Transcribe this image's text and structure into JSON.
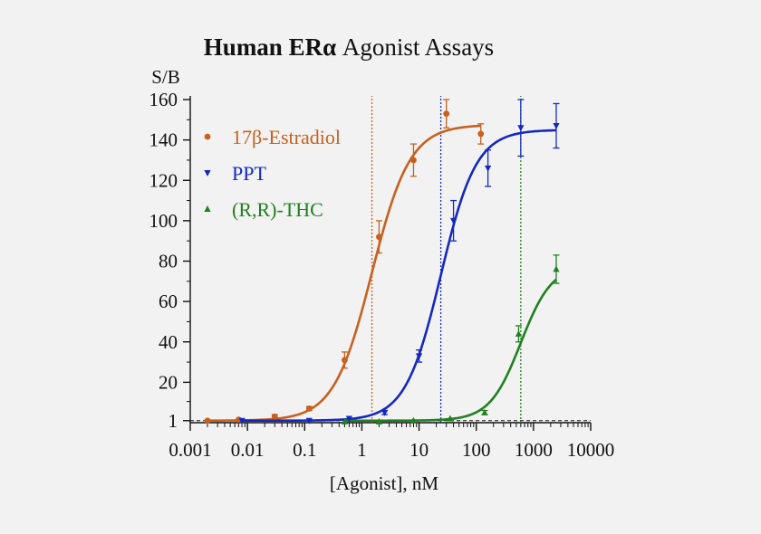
{
  "chart_data": {
    "type": "line",
    "title_bold": "Human ERα",
    "title_rest": " Agonist Assays",
    "ylabel": "S/B",
    "xlabel": "[Agonist], nM",
    "xscale": "log",
    "xlim": [
      0.001,
      10000
    ],
    "ylim": [
      0,
      160
    ],
    "x_ticks": [
      0.001,
      0.01,
      0.1,
      1,
      10,
      100,
      1000,
      10000
    ],
    "x_tick_labels": [
      "0.001",
      "0.01",
      "0.1",
      "1",
      "10",
      "100",
      "1000",
      "10000"
    ],
    "y_ticks": [
      1,
      20,
      40,
      60,
      80,
      100,
      120,
      140,
      160
    ],
    "y_tick_labels": [
      "1",
      "20",
      "40",
      "60",
      "80",
      "100",
      "120",
      "140",
      "160"
    ],
    "baseline": 1,
    "legend_position": "top-left",
    "series": [
      {
        "name": "17β-Estradiol",
        "color": "#c8601e",
        "marker": "circle",
        "fit": {
          "bottom": 1,
          "top": 147.5,
          "ec50": 1.5,
          "hill": 1.3
        },
        "points": [
          {
            "x": 0.002,
            "y": 1,
            "err": 0.5
          },
          {
            "x": 0.007,
            "y": 1.5,
            "err": 0.5
          },
          {
            "x": 0.03,
            "y": 3,
            "err": 1
          },
          {
            "x": 0.12,
            "y": 7,
            "err": 1
          },
          {
            "x": 0.5,
            "y": 31,
            "err": 4
          },
          {
            "x": 2,
            "y": 92,
            "err": 8
          },
          {
            "x": 8,
            "y": 130,
            "err": 8
          },
          {
            "x": 30,
            "y": 153,
            "err": 7
          },
          {
            "x": 120,
            "y": 143,
            "err": 5
          }
        ]
      },
      {
        "name": "PPT",
        "color": "#1428c0",
        "marker": "triangle-down",
        "fit": {
          "bottom": 1,
          "top": 145,
          "ec50": 24,
          "hill": 1.4
        },
        "points": [
          {
            "x": 0.008,
            "y": 1,
            "err": 0.5
          },
          {
            "x": 0.12,
            "y": 1,
            "err": 0.5
          },
          {
            "x": 0.6,
            "y": 2,
            "err": 0.5
          },
          {
            "x": 2.5,
            "y": 5,
            "err": 1
          },
          {
            "x": 10,
            "y": 33,
            "err": 3
          },
          {
            "x": 40,
            "y": 100,
            "err": 10
          },
          {
            "x": 160,
            "y": 126,
            "err": 9
          },
          {
            "x": 600,
            "y": 146,
            "err": 14
          },
          {
            "x": 2500,
            "y": 147,
            "err": 11
          }
        ]
      },
      {
        "name": "(R,R)-THC",
        "color": "#208020",
        "marker": "triangle-up",
        "fit": {
          "bottom": 1,
          "top": 78,
          "ec50": 600,
          "hill": 1.6
        },
        "points": [
          {
            "x": 0.5,
            "y": 0.5,
            "err": 0.5
          },
          {
            "x": 2,
            "y": 0.5,
            "err": 0.5
          },
          {
            "x": 8,
            "y": 1,
            "err": 0.5
          },
          {
            "x": 35,
            "y": 2,
            "err": 0.5
          },
          {
            "x": 140,
            "y": 5,
            "err": 1
          },
          {
            "x": 550,
            "y": 44,
            "err": 4
          },
          {
            "x": 2500,
            "y": 76,
            "err": 7
          }
        ]
      }
    ]
  }
}
